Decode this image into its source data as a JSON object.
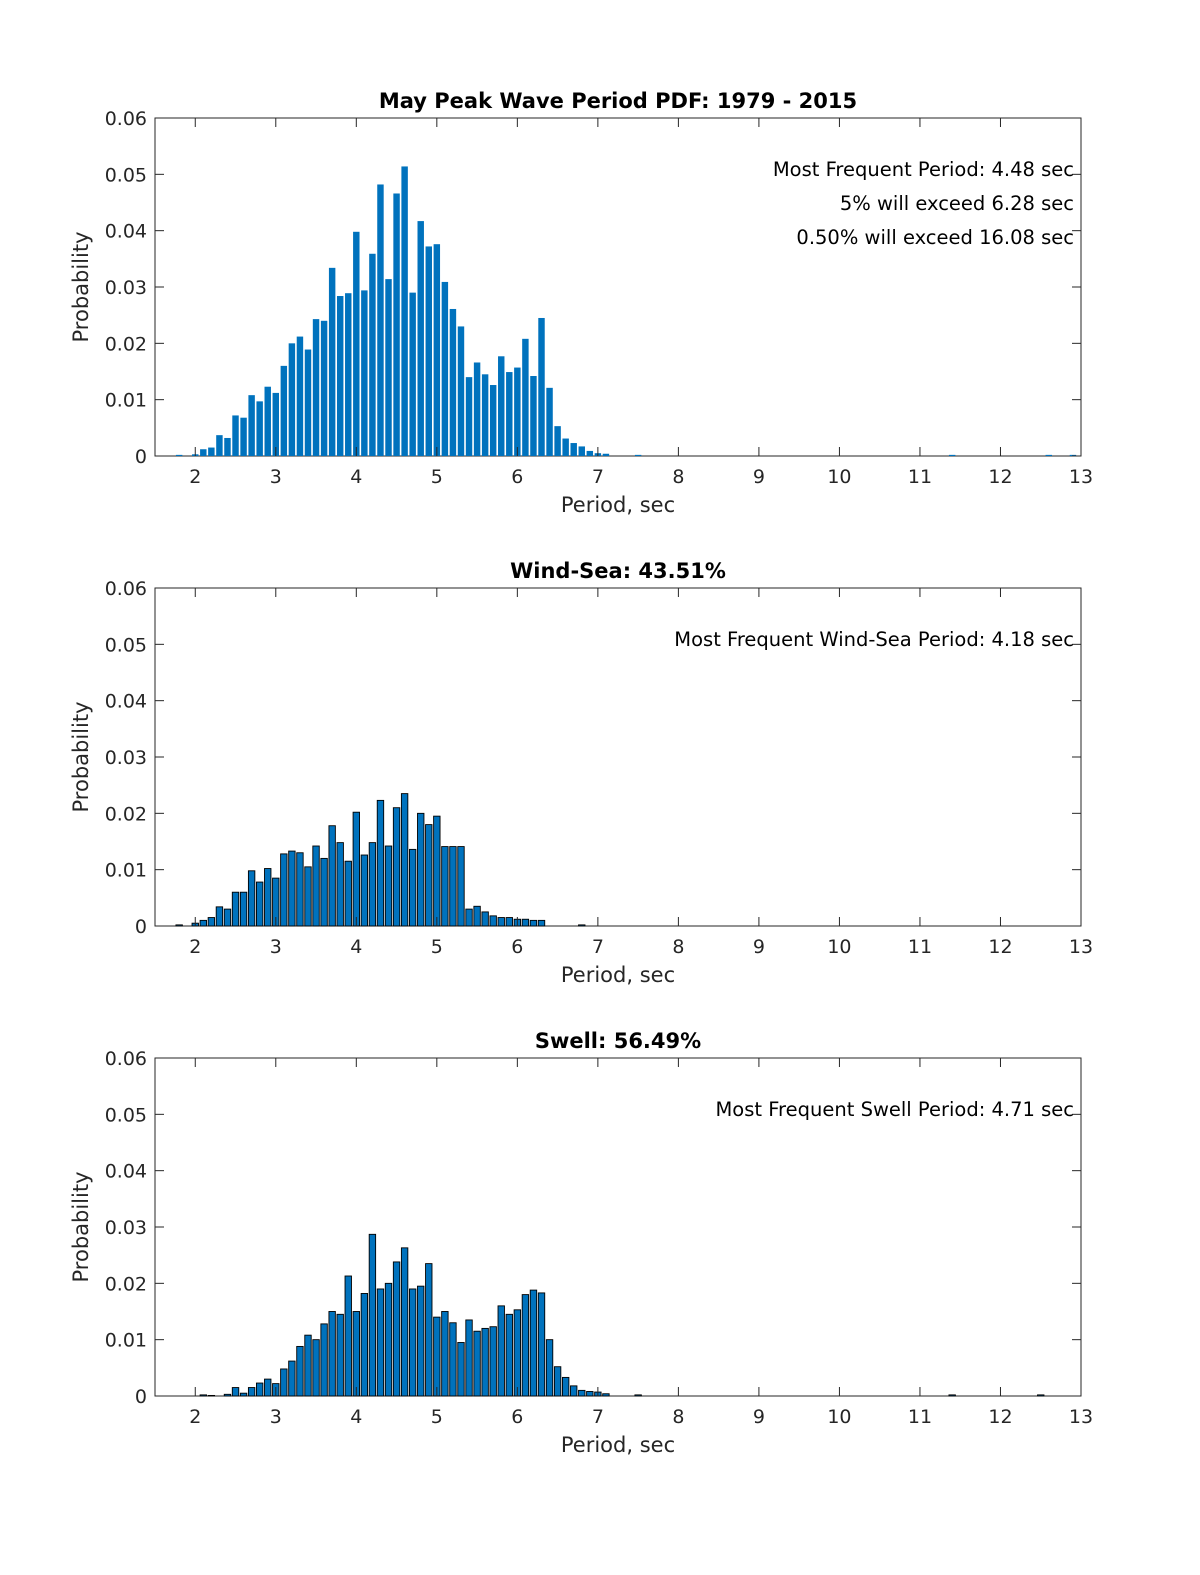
{
  "chart_data": [
    {
      "type": "bar",
      "title": "May Peak Wave Period PDF: 1979 - 2015",
      "xlabel": "Period, sec",
      "ylabel": "Probability",
      "xlim": [
        1.5,
        13
      ],
      "ylim": [
        0,
        0.06
      ],
      "xticks": [
        "2",
        "3",
        "4",
        "5",
        "6",
        "7",
        "8",
        "9",
        "10",
        "11",
        "12",
        "13"
      ],
      "yticks": [
        "0",
        "0.01",
        "0.02",
        "0.03",
        "0.04",
        "0.05",
        "0.06"
      ],
      "bar_edge": false,
      "annotations": [
        "Most Frequent Period: 4.48 sec",
        "5% will exceed 6.28 sec",
        "0.50% will exceed 16.08 sec"
      ],
      "series": [
        {
          "name": "Peak Period",
          "color": "#0072BD",
          "x": [
            1.8,
            2.0,
            2.1,
            2.2,
            2.3,
            2.4,
            2.5,
            2.6,
            2.7,
            2.8,
            2.9,
            3.0,
            3.1,
            3.2,
            3.3,
            3.4,
            3.5,
            3.6,
            3.7,
            3.8,
            3.9,
            4.0,
            4.1,
            4.2,
            4.3,
            4.4,
            4.5,
            4.6,
            4.7,
            4.8,
            4.9,
            5.0,
            5.1,
            5.2,
            5.3,
            5.4,
            5.5,
            5.6,
            5.7,
            5.8,
            5.9,
            6.0,
            6.1,
            6.2,
            6.3,
            6.4,
            6.5,
            6.6,
            6.7,
            6.8,
            6.9,
            7.0,
            7.1,
            7.5,
            11.4,
            12.6,
            12.9
          ],
          "values": [
            0.0002,
            0.0003,
            0.0012,
            0.0015,
            0.0037,
            0.0032,
            0.0072,
            0.0068,
            0.0108,
            0.0097,
            0.0123,
            0.0112,
            0.016,
            0.02,
            0.0212,
            0.0189,
            0.0243,
            0.024,
            0.0334,
            0.0284,
            0.0289,
            0.0398,
            0.0294,
            0.0359,
            0.0482,
            0.0314,
            0.0466,
            0.0514,
            0.029,
            0.0417,
            0.0372,
            0.0376,
            0.0309,
            0.0261,
            0.023,
            0.014,
            0.0166,
            0.0145,
            0.0126,
            0.0177,
            0.0149,
            0.0157,
            0.0208,
            0.0142,
            0.0245,
            0.0121,
            0.0053,
            0.0031,
            0.0023,
            0.0017,
            0.0009,
            0.0005,
            0.0004,
            0.0002,
            0.0002,
            0.0002,
            0.0002
          ]
        }
      ]
    },
    {
      "type": "bar",
      "title": "Wind-Sea: 43.51%",
      "xlabel": "Period, sec",
      "ylabel": "Probability",
      "xlim": [
        1.5,
        13
      ],
      "ylim": [
        0,
        0.06
      ],
      "xticks": [
        "2",
        "3",
        "4",
        "5",
        "6",
        "7",
        "8",
        "9",
        "10",
        "11",
        "12",
        "13"
      ],
      "yticks": [
        "0",
        "0.01",
        "0.02",
        "0.03",
        "0.04",
        "0.05",
        "0.06"
      ],
      "bar_edge": true,
      "annotations": [
        "Most Frequent Wind-Sea Period: 4.18 sec"
      ],
      "series": [
        {
          "name": "Wind-Sea",
          "color": "#0072BD",
          "x": [
            1.8,
            2.0,
            2.1,
            2.2,
            2.3,
            2.4,
            2.5,
            2.6,
            2.7,
            2.8,
            2.9,
            3.0,
            3.1,
            3.2,
            3.3,
            3.4,
            3.5,
            3.6,
            3.7,
            3.8,
            3.9,
            4.0,
            4.1,
            4.2,
            4.3,
            4.4,
            4.5,
            4.6,
            4.7,
            4.8,
            4.9,
            5.0,
            5.1,
            5.2,
            5.3,
            5.4,
            5.5,
            5.6,
            5.7,
            5.8,
            5.9,
            6.0,
            6.1,
            6.2,
            6.3,
            6.8
          ],
          "values": [
            0.0002,
            0.0005,
            0.001,
            0.0015,
            0.0034,
            0.003,
            0.006,
            0.006,
            0.0098,
            0.0078,
            0.0102,
            0.0085,
            0.0128,
            0.0133,
            0.013,
            0.0105,
            0.0142,
            0.012,
            0.0178,
            0.0148,
            0.0115,
            0.0202,
            0.0126,
            0.0148,
            0.0223,
            0.0142,
            0.021,
            0.0235,
            0.0136,
            0.02,
            0.018,
            0.0195,
            0.0141,
            0.0141,
            0.0141,
            0.003,
            0.0035,
            0.0025,
            0.0018,
            0.0015,
            0.0015,
            0.0012,
            0.0012,
            0.001,
            0.001,
            0.0002
          ]
        }
      ]
    },
    {
      "type": "bar",
      "title": "Swell: 56.49%",
      "xlabel": "Period, sec",
      "ylabel": "Probability",
      "xlim": [
        1.5,
        13
      ],
      "ylim": [
        0,
        0.06
      ],
      "xticks": [
        "2",
        "3",
        "4",
        "5",
        "6",
        "7",
        "8",
        "9",
        "10",
        "11",
        "12",
        "13"
      ],
      "yticks": [
        "0",
        "0.01",
        "0.02",
        "0.03",
        "0.04",
        "0.05",
        "0.06"
      ],
      "bar_edge": true,
      "annotations": [
        "Most Frequent Swell Period: 4.71 sec"
      ],
      "series": [
        {
          "name": "Swell",
          "color": "#0072BD",
          "x": [
            2.1,
            2.2,
            2.4,
            2.5,
            2.6,
            2.7,
            2.8,
            2.9,
            3.0,
            3.1,
            3.2,
            3.3,
            3.4,
            3.5,
            3.6,
            3.7,
            3.8,
            3.9,
            4.0,
            4.1,
            4.2,
            4.3,
            4.4,
            4.5,
            4.6,
            4.7,
            4.8,
            4.9,
            5.0,
            5.1,
            5.2,
            5.3,
            5.4,
            5.5,
            5.6,
            5.7,
            5.8,
            5.9,
            6.0,
            6.1,
            6.2,
            6.3,
            6.4,
            6.5,
            6.6,
            6.7,
            6.8,
            6.9,
            7.0,
            7.1,
            7.5,
            11.4,
            12.5
          ],
          "values": [
            0.0002,
            0.0001,
            0.0003,
            0.0015,
            0.0005,
            0.0015,
            0.0023,
            0.003,
            0.0022,
            0.0048,
            0.0062,
            0.0088,
            0.0108,
            0.01,
            0.0128,
            0.015,
            0.0145,
            0.0213,
            0.015,
            0.0182,
            0.0287,
            0.019,
            0.02,
            0.0238,
            0.0263,
            0.019,
            0.0195,
            0.0235,
            0.014,
            0.015,
            0.013,
            0.0095,
            0.0135,
            0.0115,
            0.012,
            0.0123,
            0.016,
            0.0145,
            0.0153,
            0.018,
            0.0188,
            0.0183,
            0.01,
            0.0052,
            0.0033,
            0.0018,
            0.001,
            0.0008,
            0.0007,
            0.0004,
            0.0002,
            0.0002,
            0.0002
          ]
        }
      ]
    }
  ]
}
